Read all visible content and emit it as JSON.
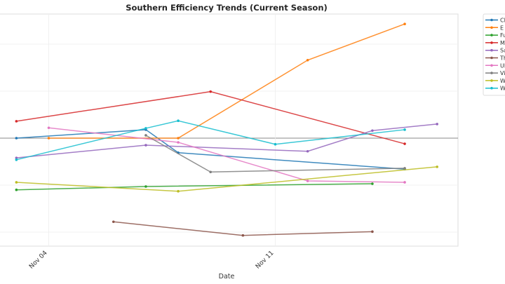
{
  "chart_data": {
    "type": "line",
    "title": "Southern Efficiency Trends (Current Season)",
    "xlabel": "Date",
    "ylabel": "",
    "x_ticks": [
      "Nov 04",
      "Nov 11"
    ],
    "xlim": [
      "Nov 02.5",
      "Nov 16.7"
    ],
    "ylim": [
      -2.3,
      2.65
    ],
    "y_gridlines": [
      -2,
      -1,
      0,
      1,
      2
    ],
    "zero_line": true,
    "grid": true,
    "legend": "right",
    "series": [
      {
        "name": "Cl",
        "color": "#1f77b4",
        "x": [
          "Nov 03",
          "Nov 07",
          "Nov 08",
          "Nov 15"
        ],
        "y": [
          0,
          0.18,
          -0.31,
          -0.66
        ]
      },
      {
        "name": "E",
        "color": "#ff7f0e",
        "x": [
          "Nov 04",
          "Nov 08",
          "Nov 12",
          "Nov 15"
        ],
        "y": [
          0,
          0,
          1.66,
          2.43
        ]
      },
      {
        "name": "Fu",
        "color": "#2ca02c",
        "x": [
          "Nov 03",
          "Nov 07",
          "Nov 14"
        ],
        "y": [
          -1.1,
          -1.03,
          -0.97
        ]
      },
      {
        "name": "M",
        "color": "#d62728",
        "x": [
          "Nov 03",
          "Nov 09",
          "Nov 15"
        ],
        "y": [
          0.36,
          0.99,
          -0.12
        ]
      },
      {
        "name": "Sa",
        "color": "#9467bd",
        "x": [
          "Nov 03",
          "Nov 07",
          "Nov 12",
          "Nov 14",
          "Nov 16"
        ],
        "y": [
          -0.42,
          -0.15,
          -0.28,
          0.16,
          0.3
        ]
      },
      {
        "name": "Th",
        "color": "#8c564b",
        "x": [
          "Nov 06",
          "Nov 10",
          "Nov 14"
        ],
        "y": [
          -1.78,
          -2.07,
          -1.99
        ]
      },
      {
        "name": "Ul",
        "color": "#e377c2",
        "x": [
          "Nov 04",
          "Nov 08",
          "Nov 12",
          "Nov 15"
        ],
        "y": [
          0.22,
          -0.09,
          -0.91,
          -0.94
        ]
      },
      {
        "name": "Vi",
        "color": "#7f7f7f",
        "x": [
          "Nov 07",
          "Nov 09",
          "Nov 15"
        ],
        "y": [
          0.06,
          -0.72,
          -0.64
        ]
      },
      {
        "name": "W",
        "color": "#bcbd22",
        "x": [
          "Nov 03",
          "Nov 08",
          "Nov 16"
        ],
        "y": [
          -0.94,
          -1.13,
          -0.61
        ]
      },
      {
        "name": "W",
        "color": "#17becf",
        "x": [
          "Nov 03",
          "Nov 07",
          "Nov 08",
          "Nov 11",
          "Nov 15"
        ],
        "y": [
          -0.46,
          0.21,
          0.37,
          -0.13,
          0.18
        ]
      }
    ]
  }
}
